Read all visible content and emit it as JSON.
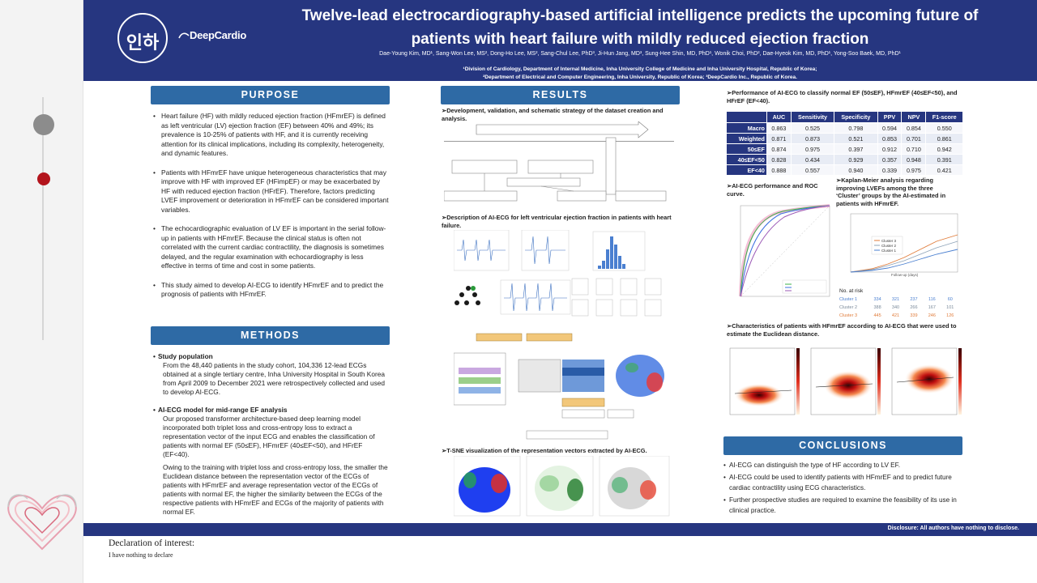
{
  "header": {
    "title_line1": "Twelve-lead electrocardiography-based artificial intelligence predicts the upcoming future of",
    "title_line2": "patients with heart failure with mildly reduced ejection fraction",
    "authors": "Dae-Young Kim, MD¹, Sang-Won Lee, MS², Dong-Ho Lee, MS², Sang-Chul Lee, PhD³, Ji-Hun Jang, MD³, Sung-Hee Shin, MD, PhD¹, Wonik Choi, PhD², Dae-Hyeok Kim, MD, PhD¹, Yong-Soo Baek, MD, PhD¹",
    "affil1": "¹Division of Cardiology, Department of Internal Medicine, Inha University College of Medicine and Inha University Hospital, Republic of Korea;",
    "affil2": "²Department of Electrical and Computer Engineering, Inha University, Republic of Korea; ³DeepCardio Inc., Republic of Korea.",
    "logo_seal": "인하",
    "logo_brand": "DeepCardio"
  },
  "purpose": {
    "title": "PURPOSE",
    "items": [
      "Heart failure (HF) with mildly reduced ejection fraction (HFmrEF) is defined as left ventricular (LV) ejection fraction (EF) between 40% and 49%; its prevalence is 10-25% of patients with HF, and it is currently receiving attention for its clinical implications, including its complexity, heterogeneity, and dynamic features.",
      "Patients with HFmrEF have unique heterogeneous characteristics that may improve with HF with improved EF (HFimpEF) or may be exacerbated by HF with reduced ejection fraction (HFrEF). Therefore, factors predicting LVEF improvement or deterioration in HFmrEF can be considered important variables.",
      "The echocardiographic evaluation of LV EF is important in the serial follow-up in patients with HFmrEF. Because the clinical status is often not correlated with the current cardiac contractility, the diagnosis is sometimes delayed, and the regular examination with echocardiography is less effective in terms of time and cost in some patients.",
      "This study aimed to develop AI-ECG to identify HFmrEF and to predict the prognosis of patients with HFmrEF."
    ]
  },
  "methods": {
    "title": "METHODS",
    "study_head": "Study population",
    "study_body": "From the 48,440 patients in the study cohort, 104,336 12-lead ECGs obtained at a single tertiary centre, Inha University Hospital in South Korea from April 2009 to December 2021 were retrospectively collected and used to develop AI-ECG.",
    "model_head": "AI-ECG model for mid-range EF analysis",
    "model_body1": "Our proposed transformer architecture-based deep learning model incorporated both triplet loss and cross-entropy loss to extract a representation vector of the input ECG and enables the classification of patients with  normal EF (50≤EF), HFmrEF (40≤EF<50), and HFrEF (EF<40).",
    "model_body2": "Owing to the training with triplet loss and cross-entropy loss, the smaller the Euclidean distance between the representation vector of the ECGs of patients with HFmrEF and average representation vector of the ECGs of patients with normal EF, the higher the similarity between the ECGs of the respective patients with HFmrEF and ECGs of the majority of patients with normal EF."
  },
  "results": {
    "title": "RESULTS",
    "fig1_heading": "Development, validation, and schematic strategy of the dataset creation and analysis.",
    "fig2_heading": "Description of AI-ECG for left ventricular ejection fraction in patients with heart failure.",
    "fig3_heading": "T-SNE visualization of the representation vectors extracted by AI-ECG.",
    "perf_heading": "Performance of AI-ECG to classify normal EF (50≤EF), HFmrEF (40≤EF<50), and HFrEF (EF<40).",
    "roc_heading": "AI-ECG performance and ROC curve.",
    "km_heading": "Kaplan-Meier analysis regarding improving LVEFs among the three ‘Cluster’ groups by the AI-estimated in patients with HFmrEF.",
    "char_heading": "Characteristics of patients with HFmrEF according to AI-ECG that were used to estimate the Euclidean distance.",
    "table": {
      "columns": [
        "",
        "AUC",
        "Sensitivity",
        "Specificity",
        "PPV",
        "NPV",
        "F1-score"
      ],
      "rows": [
        [
          "Macro",
          "0.863",
          "0.525",
          "0.798",
          "0.594",
          "0.854",
          "0.550"
        ],
        [
          "Weighted",
          "0.871",
          "0.873",
          "0.521",
          "0.853",
          "0.701",
          "0.861"
        ],
        [
          "50≤EF",
          "0.874",
          "0.975",
          "0.397",
          "0.912",
          "0.710",
          "0.942"
        ],
        [
          "40≤EF<50",
          "0.828",
          "0.434",
          "0.929",
          "0.357",
          "0.948",
          "0.391"
        ],
        [
          "EF<40",
          "0.888",
          "0.557",
          "0.940",
          "0.339",
          "0.975",
          "0.421"
        ]
      ]
    },
    "km_no_at_risk": "No. at risk",
    "km_risk": [
      [
        "Cluster 1",
        "334",
        "321",
        "237",
        "116",
        "60"
      ],
      [
        "Cluster 2",
        "388",
        "340",
        "266",
        "167",
        "101"
      ],
      [
        "Cluster 3",
        "445",
        "421",
        "339",
        "246",
        "126"
      ]
    ],
    "km_legend": [
      "Cluster 3",
      "Cluster 2",
      "Cluster 1"
    ],
    "km_xlabel": "Follow-up (days)",
    "colors": {
      "cluster1": "#4a7fd0",
      "cluster2": "#8fa4b8",
      "cluster3": "#e07b39",
      "accent": "#263680"
    }
  },
  "conclusions": {
    "title": "CONCLUSIONS",
    "items": [
      "AI-ECG can distinguish the type of HF according to LV EF.",
      "AI-ECG could be used to identify patients with HFmrEF and to predict future cardiac contractility using ECG characteristics.",
      "Further prospective studies are required to examine the feasibility of its use in clinical practice."
    ]
  },
  "footer": {
    "disclosure": "Disclosure: All authors have nothing to disclose.",
    "decl_title": "Declaration of interest:",
    "decl_body": "I have nothing to declare"
  }
}
